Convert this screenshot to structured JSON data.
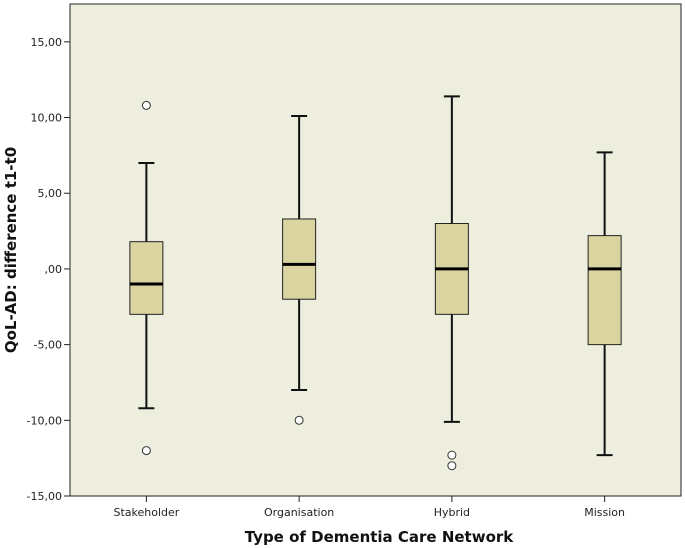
{
  "chart_data": {
    "type": "boxplot",
    "title": "",
    "xlabel": "Type of Dementia Care Network",
    "ylabel": "QoL-AD: difference t1-t0",
    "ylim": [
      -15,
      17.5
    ],
    "yticks": [
      -15,
      -10,
      -5,
      0,
      5,
      10,
      15
    ],
    "ytick_labels": [
      "-15,00",
      "-10,00",
      "-5,00",
      ",00",
      "5,00",
      "10,00",
      "15,00"
    ],
    "grid": false,
    "categories": [
      "Stakeholder",
      "Organisation",
      "Hybrid",
      "Mission"
    ],
    "boxes": [
      {
        "category": "Stakeholder",
        "whisker_low": -9.2,
        "q1": -3.0,
        "median": -1.0,
        "q3": 1.8,
        "whisker_high": 7.0,
        "outliers": [
          10.8,
          -12.0
        ]
      },
      {
        "category": "Organisation",
        "whisker_low": -8.0,
        "q1": -2.0,
        "median": 0.3,
        "q3": 3.3,
        "whisker_high": 10.1,
        "outliers": [
          -10.0
        ]
      },
      {
        "category": "Hybrid",
        "whisker_low": -10.1,
        "q1": -3.0,
        "median": 0.0,
        "q3": 3.0,
        "whisker_high": 11.4,
        "outliers": [
          -12.3,
          -13.0
        ]
      },
      {
        "category": "Mission",
        "whisker_low": -12.3,
        "q1": -5.0,
        "median": 0.0,
        "q3": 2.2,
        "whisker_high": 7.7,
        "outliers": []
      }
    ],
    "colors": {
      "plot_background": "#eeeede",
      "box_fill": "#d9d4a0",
      "box_stroke": "#222222"
    }
  }
}
